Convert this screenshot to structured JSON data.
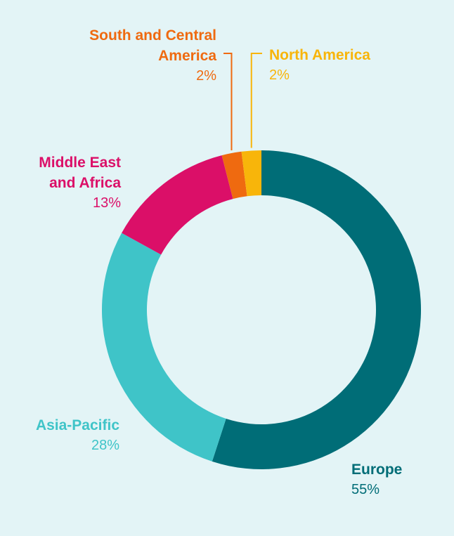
{
  "chart_data": {
    "type": "pie",
    "categories": [
      "Europe",
      "Asia-Pacific",
      "Middle East and Africa",
      "South and Central America",
      "North America"
    ],
    "values": [
      55,
      28,
      13,
      2,
      2
    ],
    "value_labels": [
      "55%",
      "28%",
      "13%",
      "2%",
      "2%"
    ],
    "colors": [
      "#006d77",
      "#3fc4c8",
      "#db0f68",
      "#ef6a10",
      "#f8b50a"
    ]
  }
}
